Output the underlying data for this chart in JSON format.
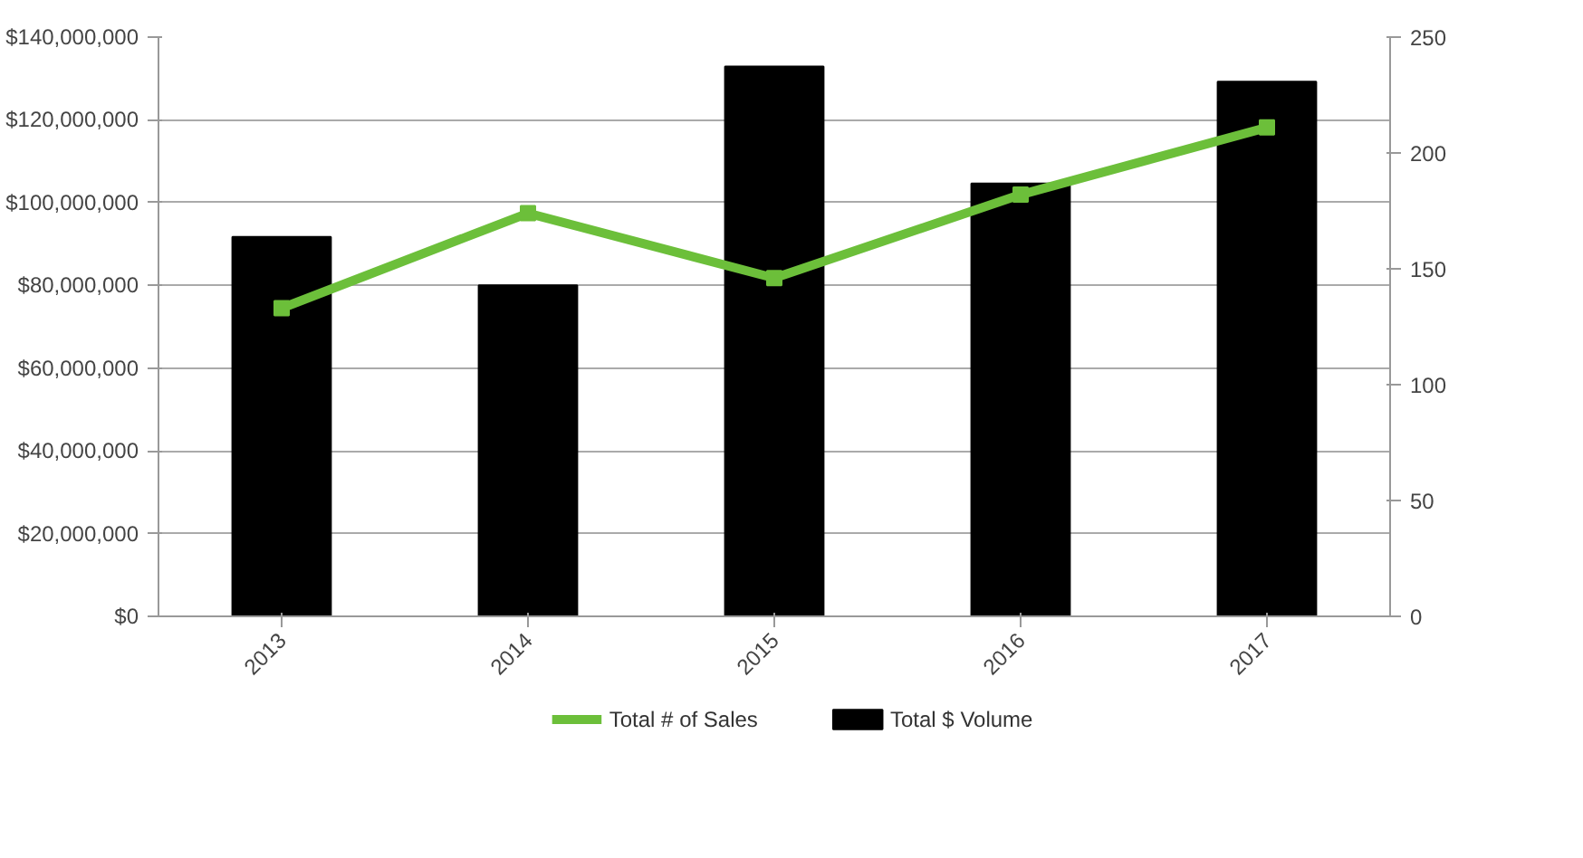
{
  "chart_data": {
    "type": "bar",
    "categories": [
      "2013",
      "2014",
      "2015",
      "2016",
      "2017"
    ],
    "series": [
      {
        "name": "Total # of Sales",
        "type": "line",
        "axis": "y2",
        "color": "#6cbf3a",
        "marker": "square",
        "values": [
          133,
          174,
          146,
          182,
          211
        ]
      },
      {
        "name": "Total $ Volume",
        "color": "#000000",
        "values": [
          91700000,
          80000000,
          132900000,
          104600000,
          129200000
        ]
      }
    ],
    "ylim": [
      0,
      140000000
    ],
    "yticks": [
      {
        "value": 0,
        "label": "$0"
      },
      {
        "value": 20000000,
        "label": "$20,000,000"
      },
      {
        "value": 40000000,
        "label": "$40,000,000"
      },
      {
        "value": 60000000,
        "label": "$60,000,000"
      },
      {
        "value": 80000000,
        "label": "$80,000,000"
      },
      {
        "value": 100000000,
        "label": "$100,000,000"
      },
      {
        "value": 120000000,
        "label": "$120,000,000"
      },
      {
        "value": 140000000,
        "label": "$140,000,000"
      }
    ],
    "y2lim": [
      0,
      250
    ],
    "y2ticks": [
      0,
      50,
      100,
      150,
      200,
      250
    ],
    "grid": "y",
    "legend": "bottom"
  }
}
